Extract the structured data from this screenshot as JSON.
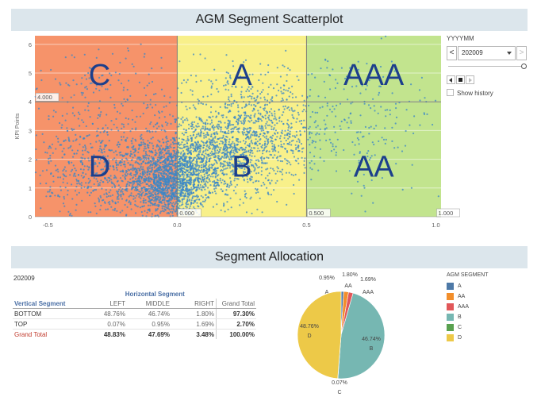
{
  "title": "AGM Segment Scatterplot",
  "allocation_title": "Segment Allocation",
  "controls": {
    "period_label": "YYYYMM",
    "period_value": "202009",
    "prev_arrow": "<",
    "next_arrow": ">",
    "show_history_label": "Show history"
  },
  "chart_data": [
    {
      "type": "scatter",
      "title": "AGM Segment Scatterplot",
      "xlabel": "",
      "ylabel": "KPI Points",
      "xlim": [
        -0.55,
        1.02
      ],
      "ylim": [
        0,
        6.3
      ],
      "x_ticks": [
        "-0.5",
        "0.0",
        "0.5",
        "1.0"
      ],
      "y_ticks": [
        "0",
        "1",
        "2",
        "3",
        "4",
        "5",
        "6"
      ],
      "reference_lines": {
        "x": [
          0,
          0.5
        ],
        "y": [
          4
        ]
      },
      "reference_labels": [
        {
          "text": "4.000",
          "x": -0.5,
          "y": 4
        },
        {
          "text": "0.000",
          "x": 0,
          "y": 0
        },
        {
          "text": "0.500",
          "x": 0.5,
          "y": 0
        },
        {
          "text": "1.000",
          "x": 1,
          "y": 0
        }
      ],
      "regions": [
        {
          "label": "C",
          "x": [
            -0.55,
            0
          ],
          "y": [
            4,
            6.3
          ],
          "color": "#f6936a"
        },
        {
          "label": "D",
          "x": [
            -0.55,
            0
          ],
          "y": [
            0,
            4
          ],
          "color": "#f6936a"
        },
        {
          "label": "A",
          "x": [
            0,
            0.5
          ],
          "y": [
            4,
            6.3
          ],
          "color": "#f8f08a"
        },
        {
          "label": "B",
          "x": [
            0,
            0.5
          ],
          "y": [
            0,
            4
          ],
          "color": "#f8f08a"
        },
        {
          "label": "AAA",
          "x": [
            0.5,
            1.02
          ],
          "y": [
            4,
            6.3
          ],
          "color": "#c2e48e"
        },
        {
          "label": "AA",
          "x": [
            0.5,
            1.02
          ],
          "y": [
            0,
            4
          ],
          "color": "#c2e48e"
        }
      ],
      "point_color": "#3a87c8",
      "clusters": [
        {
          "center": [
            -0.03,
            1.2
          ],
          "spread": [
            0.08,
            0.6
          ],
          "count": 1400
        },
        {
          "center": [
            0.12,
            2.1
          ],
          "spread": [
            0.13,
            0.75
          ],
          "count": 1100
        },
        {
          "center": [
            0.3,
            2.9
          ],
          "spread": [
            0.14,
            0.8
          ],
          "count": 650
        },
        {
          "center": [
            -0.25,
            1.6
          ],
          "spread": [
            0.17,
            1.05
          ],
          "count": 900
        },
        {
          "center": [
            0.65,
            3.2
          ],
          "spread": [
            0.2,
            1.2
          ],
          "count": 260
        },
        {
          "center": [
            -0.28,
            4.6
          ],
          "spread": [
            0.16,
            0.7
          ],
          "count": 120
        },
        {
          "center": [
            0.25,
            4.5
          ],
          "spread": [
            0.15,
            0.6
          ],
          "count": 90
        }
      ]
    },
    {
      "type": "pie",
      "slices": [
        {
          "label": "A",
          "value": 0.95,
          "text": "0.95%",
          "color": "#4e79a7"
        },
        {
          "label": "AA",
          "value": 1.8,
          "text": "1.80%",
          "color": "#f28e2b"
        },
        {
          "label": "AAA",
          "value": 1.69,
          "text": "1.69%",
          "color": "#e15759"
        },
        {
          "label": "B",
          "value": 46.74,
          "text": "46.74%",
          "color": "#76b7b2"
        },
        {
          "label": "C",
          "value": 0.07,
          "text": "0.07%",
          "color": "#59a14f"
        },
        {
          "label": "D",
          "value": 48.76,
          "text": "48.76%",
          "color": "#edc948"
        }
      ]
    },
    {
      "type": "table",
      "period": "202009",
      "column_group": "Horizontal Segment",
      "row_header": "Vertical Segment",
      "columns": [
        "LEFT",
        "MIDDLE",
        "RIGHT",
        "Grand Total"
      ],
      "rows": [
        {
          "label": "BOTTOM",
          "values": [
            "48.76%",
            "46.74%",
            "1.80%",
            "97.30%"
          ]
        },
        {
          "label": "TOP",
          "values": [
            "0.07%",
            "0.95%",
            "1.69%",
            "2.70%"
          ]
        },
        {
          "label": "Grand Total",
          "values": [
            "48.83%",
            "47.69%",
            "3.48%",
            "100.00%"
          ]
        }
      ]
    }
  ],
  "legend": {
    "title": "AGM SEGMENT",
    "items": [
      {
        "label": "A",
        "color": "#4e79a7"
      },
      {
        "label": "AA",
        "color": "#f28e2b"
      },
      {
        "label": "AAA",
        "color": "#e15759"
      },
      {
        "label": "B",
        "color": "#76b7b2"
      },
      {
        "label": "C",
        "color": "#59a14f"
      },
      {
        "label": "D",
        "color": "#edc948"
      }
    ]
  }
}
